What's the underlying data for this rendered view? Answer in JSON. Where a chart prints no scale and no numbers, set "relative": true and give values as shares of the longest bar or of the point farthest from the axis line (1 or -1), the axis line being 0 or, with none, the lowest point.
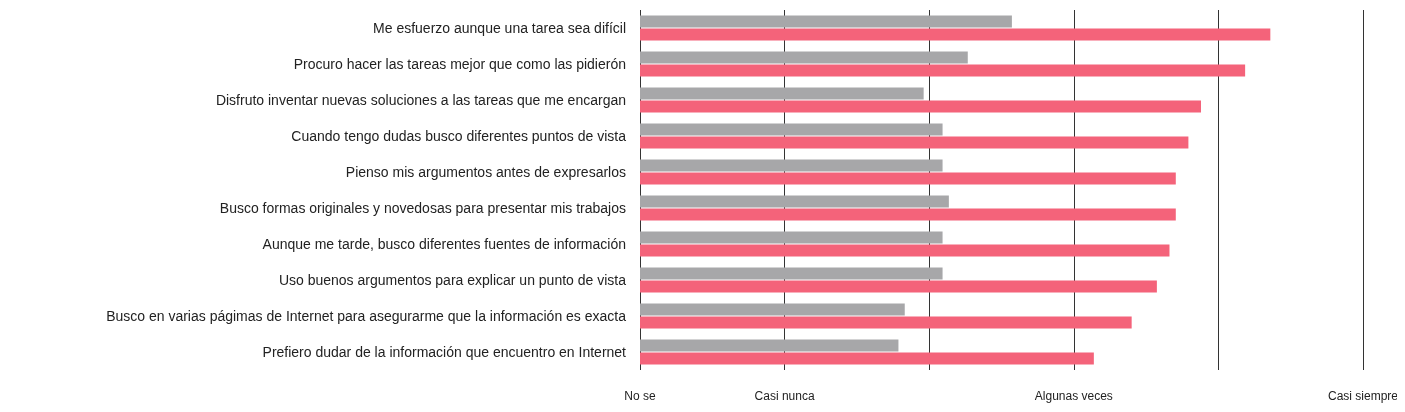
{
  "chart_data": {
    "type": "bar",
    "orientation": "horizontal",
    "relative": true,
    "categories": [
      "Me esfuerzo aunque una tarea sea difícil",
      "Procuro hacer las tareas mejor que como las pidierón",
      "Disfruto inventar nuevas soluciones a las tareas que me encargan",
      "Cuando tengo dudas busco diferentes puntos de vista",
      "Pienso mis argumentos antes de expresarlos",
      "Busco formas originales y novedosas para presentar mis trabajos",
      "Aunque me tarde, busco diferentes fuentes de información",
      "Uso buenos argumentos para explicar un punto de vista",
      "Busco en varias págimas de Internet para asegurarme que la información es exacta",
      "Prefiero dudar de la información que encuentro en Internet"
    ],
    "series": [
      {
        "color": "#a7a7a9",
        "values": [
          0.59,
          0.52,
          0.45,
          0.48,
          0.48,
          0.49,
          0.48,
          0.48,
          0.42,
          0.41
        ]
      },
      {
        "color": "#f4637a",
        "values": [
          1,
          0.96,
          0.89,
          0.87,
          0.85,
          0.85,
          0.84,
          0.82,
          0.78,
          0.72
        ]
      }
    ],
    "annotations": [
      "No se",
      "Casi nunca",
      "Algunas veces",
      "Casi siempre"
    ],
    "grid": "x"
  }
}
